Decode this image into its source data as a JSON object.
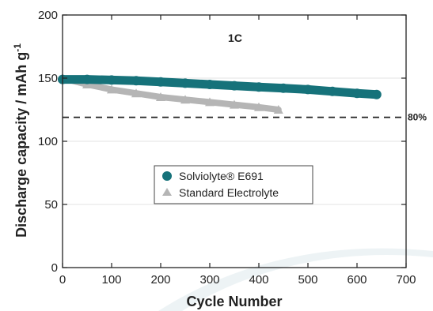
{
  "chart_data": {
    "type": "scatter",
    "xlabel": "Cycle Number",
    "ylabel": "Discharge capacity / mAh g",
    "ylabel_superscript": "-1",
    "xlim": [
      0,
      700
    ],
    "ylim": [
      0,
      200
    ],
    "xticks": [
      "0",
      "100",
      "200",
      "300",
      "400",
      "500",
      "600",
      "700"
    ],
    "yticks": [
      "0",
      "50",
      "100",
      "150",
      "200"
    ],
    "grid": "horizontal",
    "annotation": "1C",
    "reference_line": {
      "y": 119,
      "label": "80%"
    },
    "legend_position": "center",
    "series": [
      {
        "name": "Solviolyte® E691",
        "color": "#16727a",
        "marker": "circle",
        "x": [
          0,
          50,
          100,
          150,
          200,
          250,
          300,
          350,
          400,
          450,
          500,
          550,
          600,
          640
        ],
        "y": [
          149,
          149,
          148.5,
          148,
          147,
          146,
          145,
          144,
          143,
          142,
          141,
          139.5,
          138,
          137
        ]
      },
      {
        "name": "Standard Electrolyte",
        "color": "#b5b5b5",
        "marker": "triangle",
        "x": [
          0,
          50,
          100,
          150,
          200,
          250,
          300,
          350,
          400,
          440
        ],
        "y": [
          150,
          145,
          141,
          138,
          135,
          133,
          131,
          129,
          127,
          125
        ]
      }
    ]
  }
}
